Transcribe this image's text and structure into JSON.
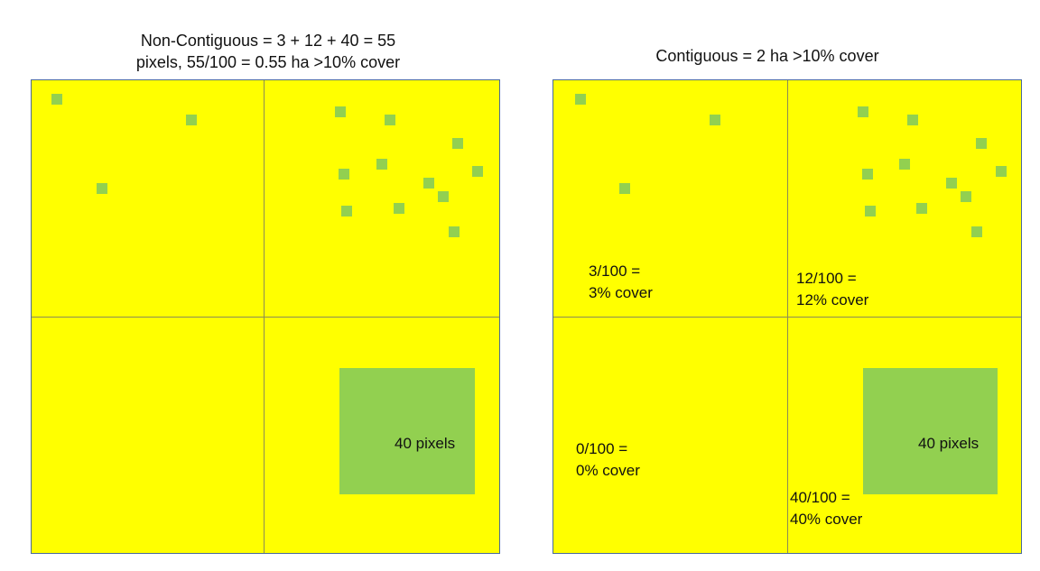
{
  "colors": {
    "background": "#ffffff",
    "field": "#ffff00",
    "cover": "#92d050",
    "border": "#4a6a9a",
    "grid_line": "#8c8c55"
  },
  "left_panel": {
    "title_line1": "Non-Contiguous = 3 + 12 + 40 = 55",
    "title_line2": "pixels, 55/100 = 0.55 ha >10% cover",
    "block_label": "40 pixels"
  },
  "right_panel": {
    "title": "Contiguous = 2 ha >10% cover",
    "block_label": "40 pixels",
    "quadrants": {
      "top_left": {
        "line1": "3/100 =",
        "line2": "3% cover"
      },
      "top_right": {
        "line1": "12/100 =",
        "line2": "12% cover"
      },
      "bottom_left": {
        "line1": "0/100 =",
        "line2": "0% cover"
      },
      "bottom_right": {
        "line1": "40/100 =",
        "line2": "40% cover"
      }
    }
  }
}
